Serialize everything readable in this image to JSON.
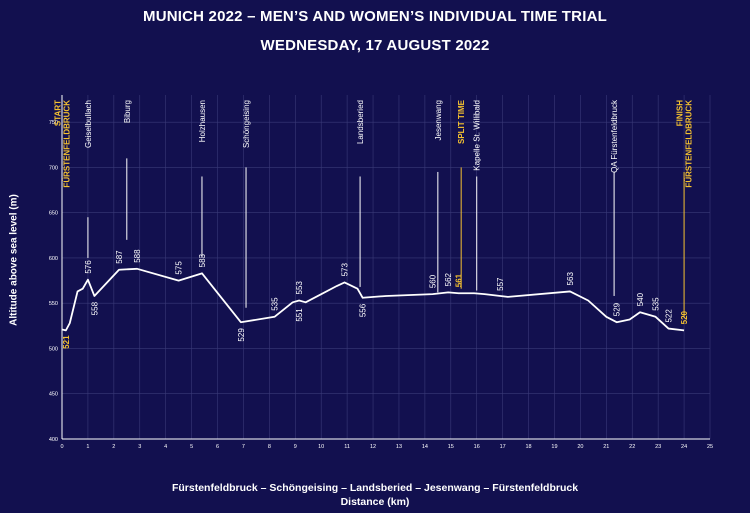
{
  "chart_data": {
    "type": "line",
    "title": "MUNICH 2022 – MEN’S AND WOMEN’S INDIVIDUAL TIME TRIAL",
    "subtitle": "WEDNESDAY, 17 AUGUST 2022",
    "xlabel": "Distance (km)",
    "route": "Fürstenfeldbruck – Schöngeising – Landsberied – Jesenwang – Fürstenfeldbruck",
    "ylabel": "Altitude above sea level (m)",
    "xlim": [
      0,
      25
    ],
    "ylim": [
      400,
      780
    ],
    "xticks": [
      0,
      1,
      2,
      3,
      4,
      5,
      6,
      7,
      8,
      9,
      10,
      11,
      12,
      13,
      14,
      15,
      16,
      17,
      18,
      19,
      20,
      21,
      22,
      23,
      24,
      25
    ],
    "yticks": [
      400,
      450,
      500,
      550,
      600,
      650,
      700,
      750
    ],
    "grid": true,
    "colors": {
      "line": "#ffffff",
      "highlight": "#f5c230",
      "grid": "#3a3a78",
      "background": "#12104f"
    },
    "series": [
      {
        "x": [
          0,
          0.15,
          0.3,
          0.6,
          0.8,
          1.0,
          1.25,
          2.2,
          2.9,
          4.5,
          5.4,
          6.9,
          8.2,
          8.9,
          9.15,
          9.4,
          10.0,
          10.6,
          10.9,
          11.4,
          11.6,
          12.5,
          14.3,
          14.9,
          15.3,
          15.9,
          16.3,
          17.2,
          19.6,
          20.3,
          21.0,
          21.4,
          21.9,
          22.3,
          22.9,
          23.4,
          24.0
        ],
        "y": [
          521,
          520,
          528,
          563,
          566,
          576,
          558,
          587,
          588,
          575,
          583,
          529,
          535,
          551,
          553,
          551,
          560,
          569,
          573,
          566,
          556,
          558,
          560,
          562,
          561,
          561,
          560,
          557,
          563,
          553,
          535,
          529,
          532,
          540,
          535,
          522,
          520
        ]
      }
    ],
    "data_labels": [
      {
        "x": 0.15,
        "y": 521,
        "text": "521",
        "below": true,
        "yellow": true
      },
      {
        "x": 1.0,
        "y": 576,
        "text": "576",
        "below": false
      },
      {
        "x": 1.25,
        "y": 558,
        "text": "558",
        "below": true
      },
      {
        "x": 2.2,
        "y": 587,
        "text": "587",
        "below": false
      },
      {
        "x": 2.9,
        "y": 588,
        "text": "588",
        "below": false
      },
      {
        "x": 4.5,
        "y": 575,
        "text": "575",
        "below": false
      },
      {
        "x": 5.4,
        "y": 583,
        "text": "583",
        "below": false
      },
      {
        "x": 6.9,
        "y": 529,
        "text": "529",
        "below": true
      },
      {
        "x": 8.2,
        "y": 535,
        "text": "535",
        "below": false
      },
      {
        "x": 9.15,
        "y": 553,
        "text": "553",
        "below": false
      },
      {
        "x": 9.15,
        "y": 551,
        "text": "551",
        "below": true
      },
      {
        "x": 10.9,
        "y": 573,
        "text": "573",
        "below": false
      },
      {
        "x": 11.6,
        "y": 556,
        "text": "556",
        "below": true
      },
      {
        "x": 14.3,
        "y": 560,
        "text": "560",
        "below": false
      },
      {
        "x": 14.9,
        "y": 562,
        "text": "562",
        "below": false
      },
      {
        "x": 15.3,
        "y": 561,
        "text": "561",
        "below": false,
        "yellow": true
      },
      {
        "x": 16.9,
        "y": 557,
        "text": "557",
        "below": false
      },
      {
        "x": 19.6,
        "y": 563,
        "text": "563",
        "below": false
      },
      {
        "x": 21.4,
        "y": 529,
        "text": "529",
        "below": false
      },
      {
        "x": 22.3,
        "y": 540,
        "text": "540",
        "below": false
      },
      {
        "x": 22.9,
        "y": 535,
        "text": "535",
        "below": false
      },
      {
        "x": 23.4,
        "y": 522,
        "text": "522",
        "below": false
      },
      {
        "x": 24.0,
        "y": 520,
        "text": "520",
        "below": false,
        "yellow": true
      }
    ],
    "markers": [
      {
        "x": 0.0,
        "lines": [
          "START",
          "FÜRSTENFELDBRUCK"
        ],
        "yellow": true,
        "connector": false
      },
      {
        "x": 1.0,
        "lines": [
          "Geiselbullach"
        ],
        "connector": true,
        "line_top": 600,
        "line_bottom": 645
      },
      {
        "x": 2.5,
        "lines": [
          "Biburg"
        ],
        "connector": true,
        "line_top": 620,
        "line_bottom": 710
      },
      {
        "x": 5.4,
        "lines": [
          "Holzhausen"
        ],
        "connector": true,
        "line_top": 600,
        "line_bottom": 690
      },
      {
        "x": 7.1,
        "lines": [
          "Schöngeising"
        ],
        "connector": true,
        "line_top": 545,
        "line_bottom": 700
      },
      {
        "x": 11.5,
        "lines": [
          "Landsberied"
        ],
        "connector": true,
        "line_top": 568,
        "line_bottom": 690
      },
      {
        "x": 14.5,
        "lines": [
          "Jesenwang"
        ],
        "connector": true,
        "line_top": 562,
        "line_bottom": 695
      },
      {
        "x": 15.4,
        "lines": [
          "SPLIT TIME"
        ],
        "yellow": true,
        "connector": true,
        "line_top": 566,
        "line_bottom": 700
      },
      {
        "x": 16.0,
        "lines": [
          "Kapelle St. Willibald"
        ],
        "connector": true,
        "line_top": 564,
        "line_bottom": 690
      },
      {
        "x": 21.3,
        "lines": [
          "QA Fürstenfeldbruck"
        ],
        "connector": true,
        "line_top": 558,
        "line_bottom": 695
      },
      {
        "x": 24.0,
        "lines": [
          "FINISH",
          "FÜRSTENFELDBRUCK"
        ],
        "yellow": true,
        "connector": true,
        "line_top": 535,
        "line_bottom": 695
      }
    ]
  }
}
